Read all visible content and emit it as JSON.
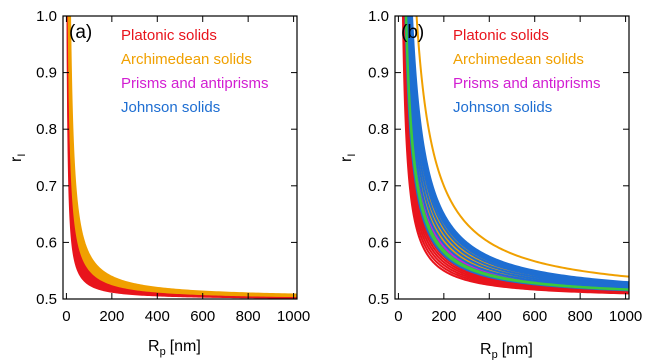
{
  "chart_data": [
    {
      "type": "line",
      "panel_label": "(a)",
      "xlabel": "R",
      "xlabel_sub": "p",
      "xlabel_unit": "[nm]",
      "ylabel": "r",
      "ylabel_sub": "I",
      "xlim": [
        -15,
        1015
      ],
      "ylim": [
        0.5,
        1.0
      ],
      "xticks": [
        0,
        200,
        400,
        600,
        800,
        1000
      ],
      "yticks": [
        0.5,
        0.6,
        0.7,
        0.8,
        0.9,
        1.0
      ],
      "ytick_labels": [
        "0.5",
        "0.6",
        "0.7",
        "0.8",
        "0.9",
        "1.0"
      ],
      "grid": false,
      "legend_position": "top-right",
      "curve_model": "r_I = 0.5 + k / R_p (clipped at 1.0)",
      "series": [
        {
          "name": "Platonic solids",
          "color": "#e8141c",
          "k_values": [
            2.6,
            3.0,
            3.3,
            3.6,
            4.0,
            4.3,
            4.6,
            5.0,
            5.4
          ]
        },
        {
          "name": "Archimedean solids",
          "color": "#f0a000",
          "k_values": [
            5.3,
            5.6,
            6.0,
            6.4,
            6.8,
            7.2,
            7.8
          ]
        },
        {
          "name": "Prisms and antiprisms",
          "color": "#d21ed2",
          "k_values": []
        },
        {
          "name": "Johnson solids",
          "color": "#1e6ed2",
          "k_values": []
        }
      ]
    },
    {
      "type": "line",
      "panel_label": "(b)",
      "xlabel": "R",
      "xlabel_sub": "p",
      "xlabel_unit": "[nm]",
      "ylabel": "r",
      "ylabel_sub": "I",
      "xlim": [
        -15,
        1015
      ],
      "ylim": [
        0.5,
        1.0
      ],
      "xticks": [
        0,
        200,
        400,
        600,
        800,
        1000
      ],
      "yticks": [
        0.5,
        0.6,
        0.7,
        0.8,
        0.9,
        1.0
      ],
      "ytick_labels": [
        "0.5",
        "0.6",
        "0.7",
        "0.8",
        "0.9",
        "1.0"
      ],
      "grid": false,
      "legend_position": "top-right",
      "curve_model": "r_I = 0.5 + k / R_p (clipped at 1.0)",
      "series": [
        {
          "name": "Platonic solids",
          "color": "#e8141c",
          "k_values": [
            10,
            11,
            12,
            13,
            14,
            15,
            16
          ]
        },
        {
          "name": "Archimedean solids",
          "color": "#f0a000",
          "k_values": [
            17,
            18,
            19,
            20,
            21,
            22,
            23,
            24,
            25,
            26,
            40
          ]
        },
        {
          "name": "Prisms and antiprisms",
          "color": "#d21ed2",
          "k_values": [
            18.5
          ]
        },
        {
          "name": "Johnson solids",
          "color": "#1e6ed2",
          "k_values": [
            15.5,
            17.5,
            19.5,
            21.5,
            23.5,
            25.5,
            27,
            28,
            29,
            30
          ]
        },
        {
          "name": "",
          "color": "#3cc83c",
          "k_values": [
            16.5,
            17.3
          ]
        }
      ]
    }
  ]
}
